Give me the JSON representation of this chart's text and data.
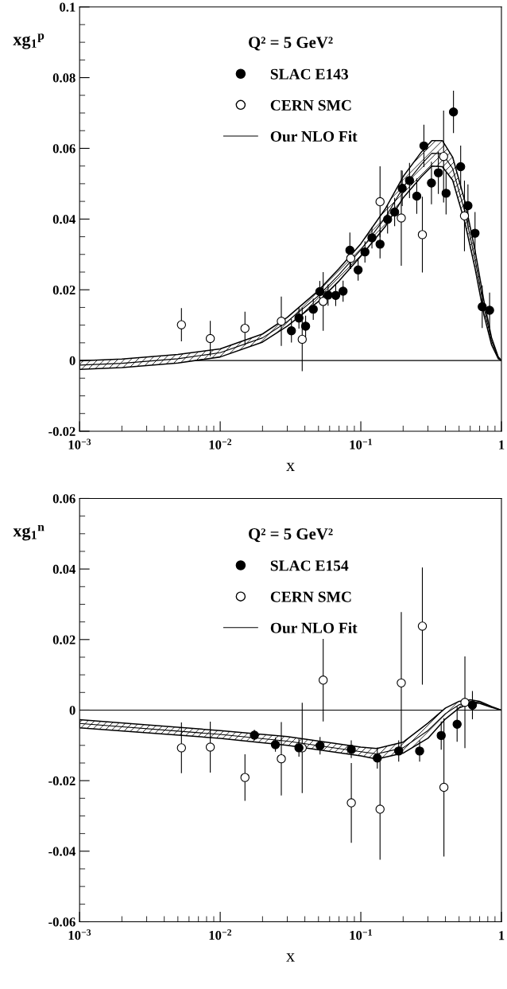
{
  "chart_data": [
    {
      "type": "scatter",
      "ylabel": "xg$_{1}$$^{p}$",
      "xlabel": "x",
      "legend_title": "Q² = 5 GeV²",
      "legend": "top",
      "log": "x",
      "xlim": [
        0.001,
        1
      ],
      "xticks": [
        {
          "value": 0.001,
          "label": "10$^{−3}$"
        },
        {
          "value": 0.01,
          "label": "10$^{−2}$"
        },
        {
          "value": 0.1,
          "label": "10$^{−1}$"
        },
        1
      ],
      "ylim": [
        -0.02,
        0.1
      ],
      "yticks": [
        -0.02,
        0,
        0.02,
        0.04,
        0.06,
        0.08,
        0.1
      ],
      "grid": false,
      "ref_lines": [
        {
          "axis": "y",
          "value": 0,
          "color": "#000000"
        }
      ],
      "series": [
        {
          "name": "SLAC E143",
          "marker": "circle",
          "color": "#000000",
          "x": [
            0.0321,
            0.0363,
            0.0405,
            0.0459,
            0.0511,
            0.0585,
            0.0663,
            0.0748,
            0.0836,
            0.0957,
            0.107,
            0.12,
            0.137,
            0.155,
            0.174,
            0.197,
            0.222,
            0.25,
            0.281,
            0.318,
            0.356,
            0.404,
            0.456,
            0.513,
            0.578,
            0.649,
            0.73,
            0.824
          ],
          "values": [
            0.0084,
            0.012,
            0.0097,
            0.0145,
            0.0195,
            0.0185,
            0.0184,
            0.0196,
            0.0312,
            0.0256,
            0.0307,
            0.0347,
            0.0329,
            0.0399,
            0.042,
            0.0487,
            0.0509,
            0.0465,
            0.0607,
            0.0502,
            0.0531,
            0.0473,
            0.0703,
            0.0548,
            0.0438,
            0.036,
            0.0152,
            0.0142
          ],
          "errors": [
            0.0033,
            0.003,
            0.003,
            0.003,
            0.003,
            0.003,
            0.003,
            0.003,
            0.005,
            0.003,
            0.003,
            0.003,
            0.004,
            0.004,
            0.004,
            0.005,
            0.005,
            0.005,
            0.006,
            0.006,
            0.006,
            0.006,
            0.006,
            0.006,
            0.006,
            0.006,
            0.006,
            0.005
          ]
        },
        {
          "name": "CERN SMC",
          "marker": "circle",
          "color": "#ffffff",
          "x": [
            0.0053,
            0.0085,
            0.015,
            0.0272,
            0.0383,
            0.054,
            0.0848,
            0.137,
            0.194,
            0.274,
            0.388,
            0.546
          ],
          "values": [
            0.0101,
            0.0062,
            0.0091,
            0.0111,
            0.006,
            0.0167,
            0.0289,
            0.0449,
            0.0403,
            0.0356,
            0.0577,
            0.0409
          ],
          "errors": [
            0.0047,
            0.005,
            0.0047,
            0.007,
            0.009,
            0.0083,
            0.003,
            0.01,
            0.0135,
            0.0107,
            0.013,
            0.01
          ]
        },
        {
          "name": "Our NLO Fit",
          "type": "line",
          "color": "#000000",
          "x": [
            0.001,
            0.002,
            0.005,
            0.01,
            0.02,
            0.03,
            0.05,
            0.07,
            0.1,
            0.15,
            0.2,
            0.27,
            0.32,
            0.38,
            0.45,
            0.55,
            0.65,
            0.75,
            0.85,
            0.95,
            1.0
          ],
          "values": [
            -0.0013,
            -0.0008,
            0.0005,
            0.0022,
            0.0064,
            0.011,
            0.0183,
            0.0243,
            0.0313,
            0.0405,
            0.049,
            0.0555,
            0.0586,
            0.0585,
            0.0543,
            0.042,
            0.0285,
            0.015,
            0.0055,
            0.0008,
            0
          ],
          "lower": [
            -0.0025,
            -0.002,
            -0.0007,
            0.001,
            0.0052,
            0.0097,
            0.0167,
            0.0225,
            0.0295,
            0.038,
            0.046,
            0.052,
            0.055,
            0.0548,
            0.051,
            0.039,
            0.026,
            0.013,
            0.0045,
            0.0005,
            0
          ],
          "upper": [
            -0.0001,
            0.0004,
            0.0017,
            0.0033,
            0.0075,
            0.0122,
            0.0198,
            0.026,
            0.033,
            0.043,
            0.052,
            0.059,
            0.0622,
            0.0622,
            0.0575,
            0.045,
            0.031,
            0.017,
            0.0065,
            0.001,
            0
          ]
        }
      ]
    },
    {
      "type": "scatter",
      "ylabel": "xg$_{1}$$^{n}$",
      "xlabel": "x",
      "legend_title": "Q² = 5 GeV²",
      "legend": "top",
      "log": "x",
      "xlim": [
        0.001,
        1
      ],
      "xticks": [
        {
          "value": 0.001,
          "label": "10$^{−3}$"
        },
        {
          "value": 0.01,
          "label": "10$^{−2}$"
        },
        {
          "value": 0.1,
          "label": "10$^{−1}$"
        },
        1
      ],
      "ylim": [
        -0.06,
        0.06
      ],
      "yticks": [
        -0.06,
        -0.04,
        -0.02,
        0,
        0.02,
        0.04,
        0.06
      ],
      "grid": false,
      "ref_lines": [
        {
          "axis": "y",
          "value": 0,
          "color": "#000000"
        }
      ],
      "series": [
        {
          "name": "SLAC E154",
          "marker": "circle",
          "color": "#000000",
          "x": [
            0.0175,
            0.0247,
            0.0363,
            0.0513,
            0.0855,
            0.131,
            0.186,
            0.262,
            0.373,
            0.484,
            0.622
          ],
          "values": [
            -0.0071,
            -0.0098,
            -0.0107,
            -0.0101,
            -0.0111,
            -0.0136,
            -0.0116,
            -0.0116,
            -0.0072,
            -0.004,
            0.0014
          ],
          "errors": [
            0.0015,
            0.002,
            0.0025,
            0.0025,
            0.0025,
            0.003,
            0.003,
            0.003,
            0.004,
            0.005,
            0.004
          ]
        },
        {
          "name": "CERN SMC",
          "marker": "circle",
          "color": "#ffffff",
          "x": [
            0.0053,
            0.0085,
            0.015,
            0.0272,
            0.0383,
            0.054,
            0.0856,
            0.137,
            0.194,
            0.274,
            0.39,
            0.55
          ],
          "values": [
            -0.0107,
            -0.0105,
            -0.0191,
            -0.0138,
            -0.0107,
            0.0085,
            -0.0263,
            -0.0281,
            0.0077,
            0.0238,
            -0.0219,
            0.0022
          ],
          "errors": [
            0.0072,
            0.0072,
            0.0066,
            0.0104,
            0.0128,
            0.0117,
            0.0113,
            0.0143,
            0.0201,
            0.0166,
            0.0196,
            0.013
          ]
        },
        {
          "name": "Our NLO Fit",
          "type": "line",
          "color": "#000000",
          "x": [
            0.001,
            0.01,
            0.03,
            0.1,
            0.13,
            0.2,
            0.3,
            0.4,
            0.5,
            0.6,
            0.7,
            0.85,
            1.0
          ],
          "values": [
            -0.0038,
            -0.0069,
            -0.0088,
            -0.0118,
            -0.0124,
            -0.0107,
            -0.0058,
            -0.001,
            0.0015,
            0.0024,
            0.0022,
            0.0009,
            0
          ],
          "lower": [
            -0.005,
            -0.008,
            -0.01,
            -0.013,
            -0.0139,
            -0.0122,
            -0.008,
            -0.0025,
            0.0006,
            0.0019,
            0.0019,
            0.0008,
            0
          ],
          "upper": [
            -0.0027,
            -0.0058,
            -0.0075,
            -0.0105,
            -0.0109,
            -0.0091,
            -0.0037,
            0.0006,
            0.0025,
            0.0029,
            0.0025,
            0.001,
            0
          ]
        }
      ]
    }
  ]
}
